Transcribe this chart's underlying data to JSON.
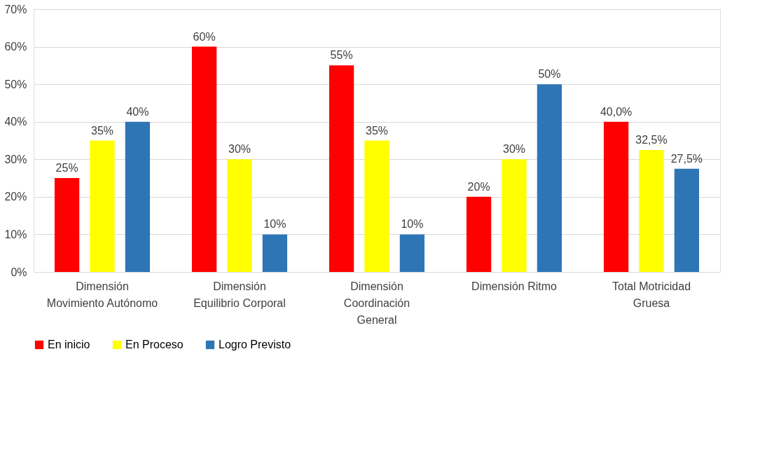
{
  "chart_data": {
    "type": "bar",
    "categories": [
      "Dimensión Movimiento Autónomo",
      "Dimensión Equilibrio Corporal",
      "Dimensión Coordinación General",
      "Dimensión Ritmo",
      "Total Motricidad Gruesa"
    ],
    "series": [
      {
        "name": "En inicio",
        "color": "#ff0000",
        "values": [
          25,
          60,
          55,
          20,
          40.0
        ],
        "value_labels": [
          "25%",
          "60%",
          "55%",
          "20%",
          "40,0%"
        ]
      },
      {
        "name": "En Proceso",
        "color": "#ffff00",
        "values": [
          35,
          30,
          35,
          30,
          32.5
        ],
        "value_labels": [
          "35%",
          "30%",
          "35%",
          "30%",
          "32,5%"
        ]
      },
      {
        "name": "Logro Previsto",
        "color": "#2e75b6",
        "values": [
          40,
          10,
          10,
          50,
          27.5
        ],
        "value_labels": [
          "40%",
          "10%",
          "10%",
          "50%",
          "27,5%"
        ]
      }
    ],
    "ylim": [
      0,
      70
    ],
    "yticks": [
      {
        "value": 0,
        "label": "0%"
      },
      {
        "value": 10,
        "label": "10%"
      },
      {
        "value": 20,
        "label": "20%"
      },
      {
        "value": 30,
        "label": "30%"
      },
      {
        "value": 40,
        "label": "40%"
      },
      {
        "value": 50,
        "label": "50%"
      },
      {
        "value": 60,
        "label": "60%"
      },
      {
        "value": 70,
        "label": "70%"
      }
    ],
    "grid": "y",
    "legend": "bottom"
  }
}
